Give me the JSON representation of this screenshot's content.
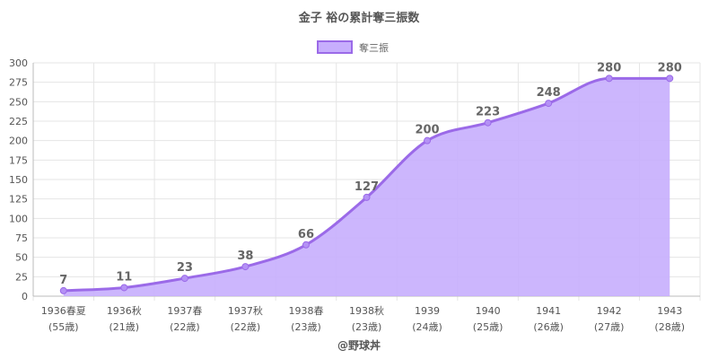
{
  "chart_data": {
    "type": "area",
    "title": "金子 裕の累計奪三振数",
    "categories": [
      "1936春夏",
      "1936秋",
      "1937春",
      "1937秋",
      "1938春",
      "1938秋",
      "1939",
      "1940",
      "1941",
      "1942",
      "1943"
    ],
    "category_sublabels": [
      "(55歳)",
      "(21歳)",
      "(22歳)",
      "(22歳)",
      "(23歳)",
      "(23歳)",
      "(24歳)",
      "(25歳)",
      "(26歳)",
      "(27歳)",
      "(28歳)"
    ],
    "series": [
      {
        "name": "奪三振",
        "values": [
          7,
          11,
          23,
          38,
          66,
          127,
          200,
          223,
          248,
          280,
          280
        ]
      }
    ],
    "ylim": [
      0,
      300
    ],
    "ytick_step": 25,
    "legend_position": "top-center",
    "grid": true,
    "data_labels": true,
    "colors": {
      "line": "#9b6ae8",
      "fill": "#c7aefd",
      "point": "#b491f5"
    }
  },
  "footer": "@野球丼"
}
